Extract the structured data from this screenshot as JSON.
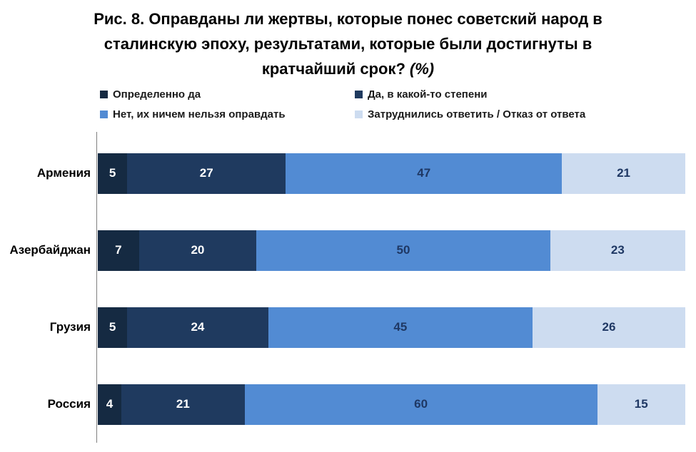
{
  "title": {
    "main": "Рис. 8. Оправданы ли жертвы, которые понес советский народ в сталинскую эпоху, результатами, которые были достигнуты в кратчайший срок?",
    "suffix": "(%)"
  },
  "chart_data": {
    "type": "bar",
    "orientation": "horizontal",
    "stacked": true,
    "title": "Рис. 8. Оправданы ли жертвы, которые понес советский народ в сталинскую эпоху, результатами, которые были достигнуты в кратчайший срок? (%)",
    "categories": [
      "Армения",
      "Азербайджан",
      "Грузия",
      "Россия"
    ],
    "series": [
      {
        "name": "Определенно да",
        "values": [
          5,
          7,
          5,
          4
        ]
      },
      {
        "name": "Да, в какой-то степени",
        "values": [
          27,
          20,
          24,
          21
        ]
      },
      {
        "name": "Нет, их ничем нельзя оправдать",
        "values": [
          47,
          50,
          45,
          60
        ]
      },
      {
        "name": "Затруднились ответить / Отказ от ответа",
        "values": [
          21,
          23,
          26,
          15
        ]
      }
    ],
    "xlim": [
      0,
      100
    ],
    "value_labels": true,
    "legend_position": "top",
    "grid": false
  },
  "colors": {
    "series": [
      "#152A42",
      "#1F3A5F",
      "#528BD3",
      "#CDDCF0"
    ],
    "value_label_on_dark": "#FFFFFF",
    "value_label_on_light": "#1F3864",
    "axis_line": "#808080",
    "background": "#FFFFFF",
    "title_text": "#000000"
  }
}
